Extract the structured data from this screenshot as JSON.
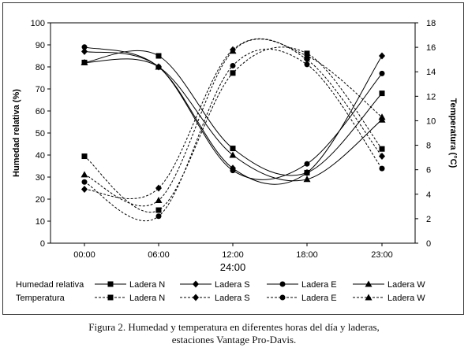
{
  "chart_data": {
    "type": "line",
    "categories": [
      "00:00",
      "06:00",
      "12:00",
      "18:00",
      "23:00"
    ],
    "x_title": "24:00",
    "ylabel": "Humedad relativa (%)",
    "y2label": "Temperatura (°C)",
    "ylim": [
      0,
      100
    ],
    "y2lim": [
      0,
      18
    ],
    "yticks": [
      "0",
      "10",
      "20",
      "30",
      "40",
      "50",
      "60",
      "70",
      "80",
      "90",
      "100"
    ],
    "y2ticks": [
      "0",
      "2",
      "4",
      "6",
      "8",
      "10",
      "12",
      "14",
      "16",
      "18"
    ],
    "legend_rows": [
      "Humedad relativa",
      "Temperatura"
    ],
    "humidity_series": [
      {
        "name": "Ladera N",
        "marker": "square",
        "values": [
          82,
          85,
          43,
          32,
          68
        ]
      },
      {
        "name": "Ladera S",
        "marker": "diamond",
        "values": [
          87,
          80,
          34,
          32,
          85
        ]
      },
      {
        "name": "Ladera E",
        "marker": "circle",
        "values": [
          89,
          80,
          33,
          36,
          77
        ]
      },
      {
        "name": "Ladera W",
        "marker": "triangle",
        "values": [
          82,
          80,
          40,
          29,
          56
        ]
      }
    ],
    "temperature_series": [
      {
        "name": "Ladera N",
        "marker": "square",
        "values": [
          7.1,
          2.7,
          13.9,
          15.5,
          7.7
        ]
      },
      {
        "name": "Ladera S",
        "marker": "diamond",
        "values": [
          4.4,
          4.5,
          15.8,
          15.0,
          7.1
        ]
      },
      {
        "name": "Ladera E",
        "marker": "circle",
        "values": [
          5.0,
          2.2,
          14.5,
          14.6,
          6.1
        ]
      },
      {
        "name": "Ladera W",
        "marker": "triangle",
        "values": [
          5.6,
          3.5,
          15.7,
          15.3,
          10.3
        ]
      }
    ]
  },
  "caption": {
    "line1": "Figura 2. Humedad y temperatura en diferentes horas del día y laderas,",
    "line2": "estaciones Vantage Pro-Davis."
  }
}
